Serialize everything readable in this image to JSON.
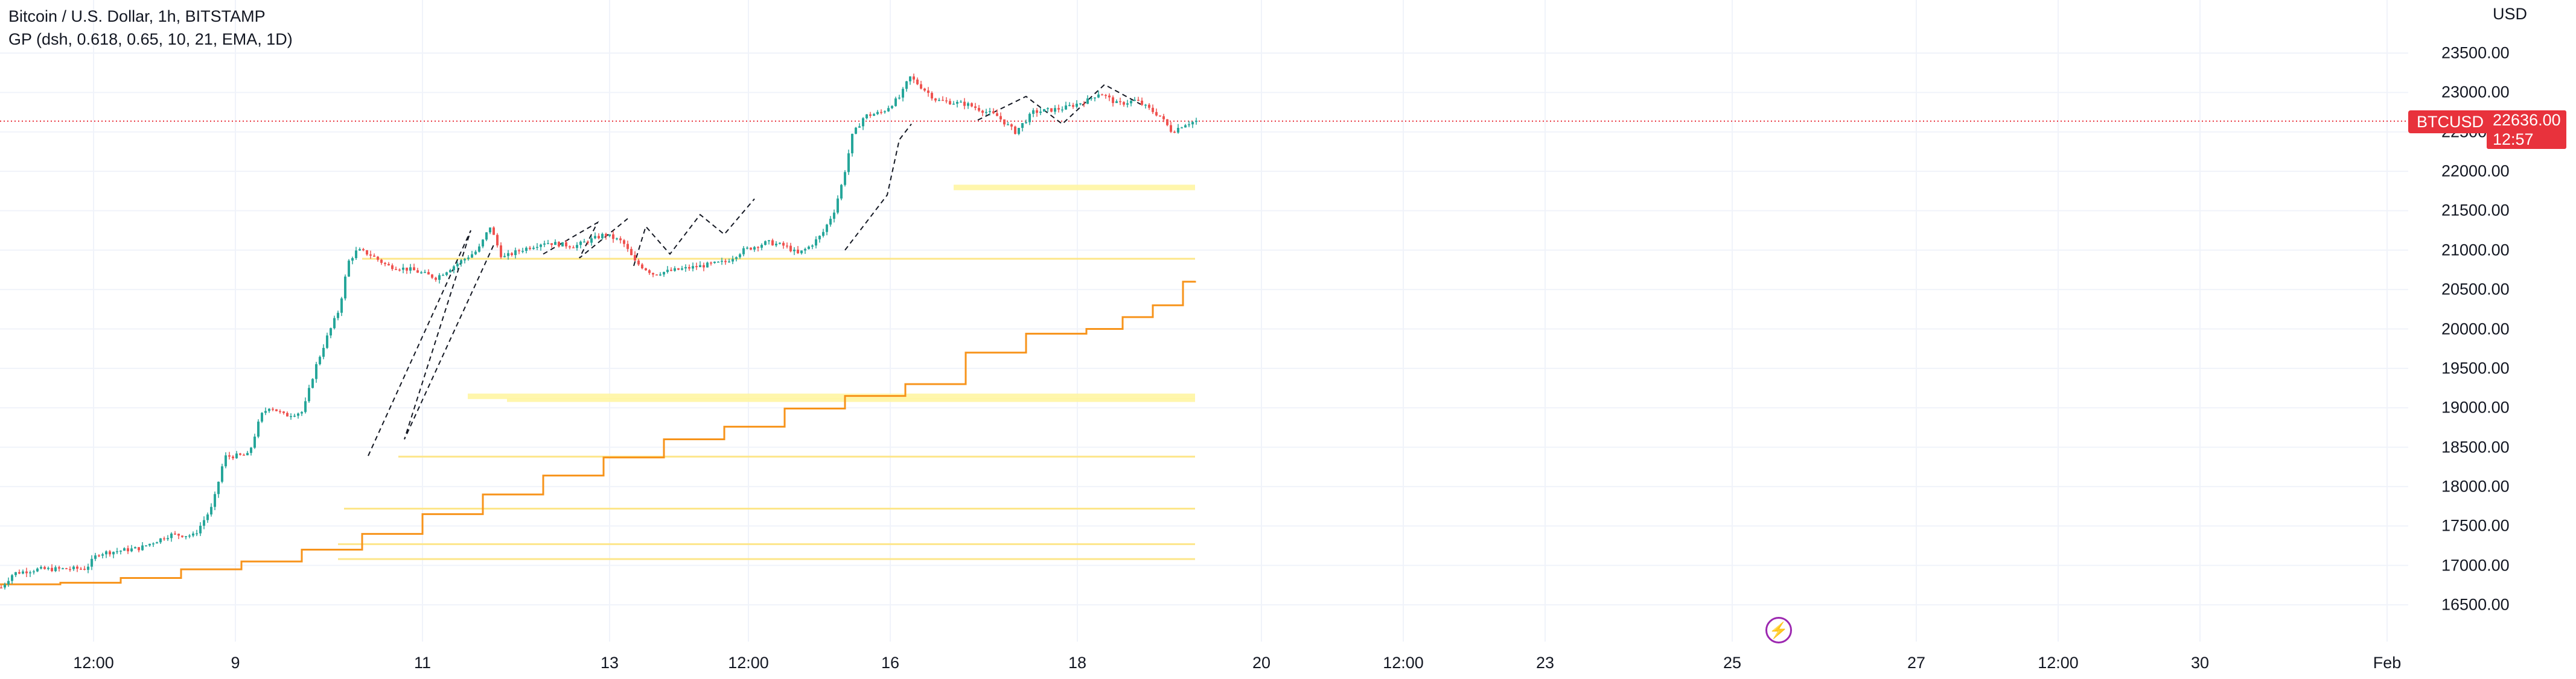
{
  "legend": {
    "title": "Bitcoin / U.S. Dollar, 1h, BITSTAMP",
    "indicator": "GP (dsh, 0.618, 0.65, 10, 21, EMA, 1D)"
  },
  "price_axis": {
    "currency": "USD",
    "ticks": [
      "23500.00",
      "23000.00",
      "22500.00",
      "22000.00",
      "21500.00",
      "21000.00",
      "20500.00",
      "20000.00",
      "19500.00",
      "19000.00",
      "18500.00",
      "18000.00",
      "17500.00",
      "17000.00",
      "16500.00"
    ],
    "symbol_label": "BTCUSD",
    "last_price": "22636.00",
    "countdown": "12:57"
  },
  "time_axis": {
    "ticks": [
      "12:00",
      "9",
      "11",
      "13",
      "12:00",
      "16",
      "18",
      "20",
      "12:00",
      "23",
      "25",
      "27",
      "12:00",
      "30",
      "Feb"
    ]
  },
  "colors": {
    "up": "#26a69a",
    "down": "#ef5350",
    "ema": "#f7931a",
    "zone": "#fff59d",
    "zone_line": "#fde68a",
    "price_line": "#e8323c",
    "accent": "#9c27b0"
  },
  "chart_data": {
    "type": "candlestick",
    "symbol": "BTCUSD",
    "timeframe": "1h",
    "ylim": [
      16300,
      23800
    ],
    "last": 22636,
    "price_path": [
      [
        0,
        16720
      ],
      [
        20,
        16900
      ],
      [
        60,
        16950
      ],
      [
        140,
        16960
      ],
      [
        160,
        17150
      ],
      [
        230,
        17220
      ],
      [
        280,
        17390
      ],
      [
        320,
        17380
      ],
      [
        350,
        17750
      ],
      [
        370,
        18380
      ],
      [
        410,
        18400
      ],
      [
        430,
        18900
      ],
      [
        445,
        19020
      ],
      [
        470,
        18900
      ],
      [
        500,
        18950
      ],
      [
        520,
        19500
      ],
      [
        540,
        19900
      ],
      [
        560,
        20250
      ],
      [
        575,
        20850
      ],
      [
        590,
        21000
      ],
      [
        610,
        20950
      ],
      [
        640,
        20800
      ],
      [
        680,
        20750
      ],
      [
        720,
        20650
      ],
      [
        760,
        20850
      ],
      [
        790,
        21000
      ],
      [
        810,
        21300
      ],
      [
        830,
        20900
      ],
      [
        860,
        21000
      ],
      [
        900,
        21100
      ],
      [
        950,
        21050
      ],
      [
        1000,
        21200
      ],
      [
        1030,
        21100
      ],
      [
        1050,
        20850
      ],
      [
        1080,
        20700
      ],
      [
        1120,
        20750
      ],
      [
        1160,
        20800
      ],
      [
        1200,
        20850
      ],
      [
        1230,
        21000
      ],
      [
        1270,
        21100
      ],
      [
        1300,
        21050
      ],
      [
        1320,
        20950
      ],
      [
        1340,
        21050
      ],
      [
        1360,
        21200
      ],
      [
        1380,
        21500
      ],
      [
        1395,
        21900
      ],
      [
        1410,
        22450
      ],
      [
        1430,
        22700
      ],
      [
        1460,
        22750
      ],
      [
        1490,
        22950
      ],
      [
        1505,
        23200
      ],
      [
        1520,
        23100
      ],
      [
        1550,
        22900
      ],
      [
        1600,
        22850
      ],
      [
        1650,
        22700
      ],
      [
        1680,
        22500
      ],
      [
        1710,
        22750
      ],
      [
        1760,
        22800
      ],
      [
        1800,
        22900
      ],
      [
        1820,
        23000
      ],
      [
        1850,
        22850
      ],
      [
        1880,
        22900
      ],
      [
        1900,
        22800
      ],
      [
        1920,
        22700
      ],
      [
        1940,
        22500
      ],
      [
        1960,
        22600
      ],
      [
        1980,
        22636
      ]
    ],
    "ema_steps": [
      [
        0,
        16760
      ],
      [
        100,
        16780
      ],
      [
        200,
        16840
      ],
      [
        300,
        16950
      ],
      [
        400,
        17050
      ],
      [
        500,
        17200
      ],
      [
        600,
        17400
      ],
      [
        700,
        17650
      ],
      [
        800,
        17900
      ],
      [
        900,
        18140
      ],
      [
        1000,
        18370
      ],
      [
        1100,
        18600
      ],
      [
        1200,
        18760
      ],
      [
        1300,
        18990
      ],
      [
        1400,
        19150
      ],
      [
        1500,
        19300
      ],
      [
        1600,
        19700
      ],
      [
        1700,
        19940
      ],
      [
        1800,
        20000
      ],
      [
        1860,
        20150
      ],
      [
        1910,
        20300
      ],
      [
        1960,
        20600
      ],
      [
        1980,
        20610
      ]
    ],
    "zones": [
      {
        "from": 1580,
        "to": 1980,
        "y1": 21830,
        "y2": 21760
      },
      {
        "from": 775,
        "to": 1980,
        "y1": 19180,
        "y2": 19110
      },
      {
        "from": 840,
        "to": 1980,
        "y1": 19120,
        "y2": 19080
      }
    ],
    "levels": [
      {
        "from": 600,
        "to": 1980,
        "y": 20890
      },
      {
        "from": 660,
        "to": 1980,
        "y": 18380
      },
      {
        "from": 570,
        "to": 1980,
        "y": 17720
      },
      {
        "from": 560,
        "to": 1980,
        "y": 17270
      },
      {
        "from": 560,
        "to": 1980,
        "y": 17080
      }
    ],
    "dashed_patterns": [
      [
        [
          610,
          18390
        ],
        [
          780,
          21250
        ],
        [
          670,
          18600
        ],
        [
          820,
          21100
        ]
      ],
      [
        [
          900,
          20950
        ],
        [
          990,
          21350
        ],
        [
          960,
          20900
        ],
        [
          1040,
          21400
        ]
      ],
      [
        [
          1050,
          20800
        ],
        [
          1070,
          21300
        ],
        [
          1110,
          20950
        ],
        [
          1160,
          21450
        ],
        [
          1200,
          21200
        ],
        [
          1250,
          21650
        ]
      ],
      [
        [
          1400,
          21000
        ],
        [
          1470,
          21700
        ],
        [
          1490,
          22400
        ],
        [
          1510,
          22600
        ]
      ],
      [
        [
          1620,
          22650
        ],
        [
          1700,
          22950
        ],
        [
          1760,
          22600
        ],
        [
          1830,
          23100
        ],
        [
          1890,
          22850
        ]
      ]
    ],
    "x_range": [
      0,
      2850
    ]
  }
}
